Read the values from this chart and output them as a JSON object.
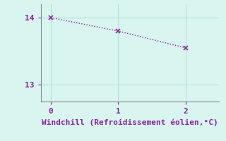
{
  "x": [
    0,
    1,
    2
  ],
  "y": [
    14.0,
    13.8,
    13.55
  ],
  "line_color": "#882299",
  "marker": "x",
  "marker_size": 4,
  "marker_linewidth": 1.2,
  "background_color": "#d8f5ef",
  "grid_color": "#b0ddd5",
  "xlabel": "Windchill (Refroidissement éolien,°C)",
  "xlabel_color": "#882299",
  "tick_color": "#882299",
  "spine_color": "#888888",
  "xlim": [
    -0.15,
    2.5
  ],
  "ylim": [
    12.75,
    14.2
  ],
  "xticks": [
    0,
    1,
    2
  ],
  "yticks": [
    13,
    14
  ],
  "xlabel_fontsize": 8,
  "tick_fontsize": 8
}
